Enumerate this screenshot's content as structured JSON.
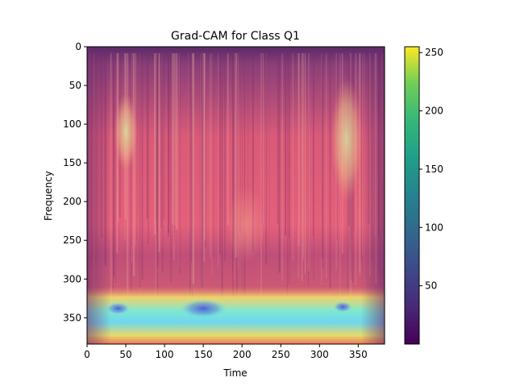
{
  "chart_data": {
    "type": "heatmap",
    "title": "Grad-CAM for Class Q1",
    "xlabel": "Time",
    "ylabel": "Frequency",
    "xlim": [
      0,
      384
    ],
    "ylim": [
      384,
      0
    ],
    "x_ticks": [
      0,
      50,
      100,
      150,
      200,
      250,
      300,
      350
    ],
    "y_ticks": [
      0,
      50,
      100,
      150,
      200,
      250,
      300,
      350
    ],
    "colorbar": {
      "colormap": "viridis",
      "range": [
        0,
        255
      ],
      "ticks": [
        50,
        100,
        150,
        200,
        250
      ]
    },
    "overlay_colormap": "jet",
    "activation_regions": [
      {
        "label": "low band (strongest)",
        "time": [
          0,
          384
        ],
        "frequency": [
          310,
          384
        ],
        "level": "high"
      },
      {
        "label": "upper band left",
        "time": [
          35,
          65
        ],
        "frequency": [
          60,
          160
        ],
        "level": "medium-high"
      },
      {
        "label": "upper band right",
        "time": [
          315,
          355
        ],
        "frequency": [
          40,
          200
        ],
        "level": "medium-high"
      },
      {
        "label": "centre",
        "time": [
          180,
          230
        ],
        "frequency": [
          180,
          280
        ],
        "level": "medium"
      }
    ]
  }
}
